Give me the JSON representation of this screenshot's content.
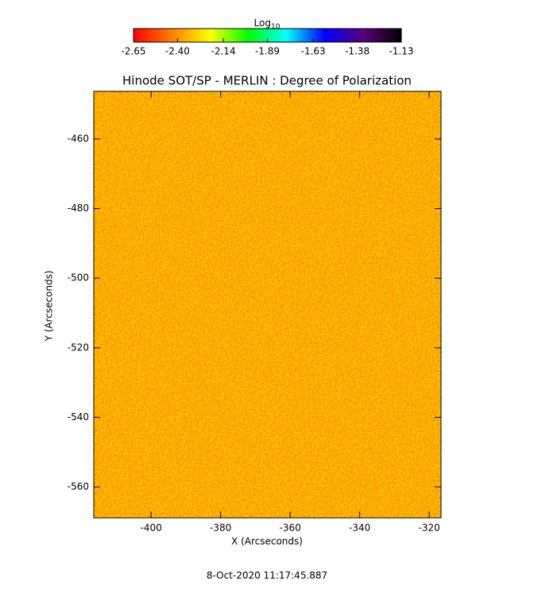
{
  "chart_data": {
    "type": "heatmap",
    "title": "Hinode SOT/SP - MERLIN : Degree of Polarization",
    "x_label": "X (Arcseconds)",
    "y_label": "Y (Arcseconds)",
    "footer": "8-Oct-2020 11:17:45.887",
    "xlim": [
      -416.5,
      -316.6
    ],
    "ylim": [
      -568.9,
      -446.3
    ],
    "xticks": [
      -400,
      -380,
      -360,
      -340,
      -320
    ],
    "yticks": [
      -560,
      -540,
      -520,
      -500,
      -480,
      -460
    ],
    "colorbar": {
      "label": "Log",
      "label_subscript": "10",
      "lim": [
        -2.65,
        -1.13
      ],
      "ticks": [
        -2.65,
        {
          "value": -2.4,
          "label": "-2.40"
        },
        -2.14,
        -1.89,
        -1.63,
        -1.38,
        -1.13
      ],
      "colormap": [
        "#ff0000",
        "#ff7f00",
        "#ffff00",
        "#00ff00",
        "#00ffff",
        "#0000ff",
        "#5a0080",
        "#000000"
      ]
    }
  }
}
